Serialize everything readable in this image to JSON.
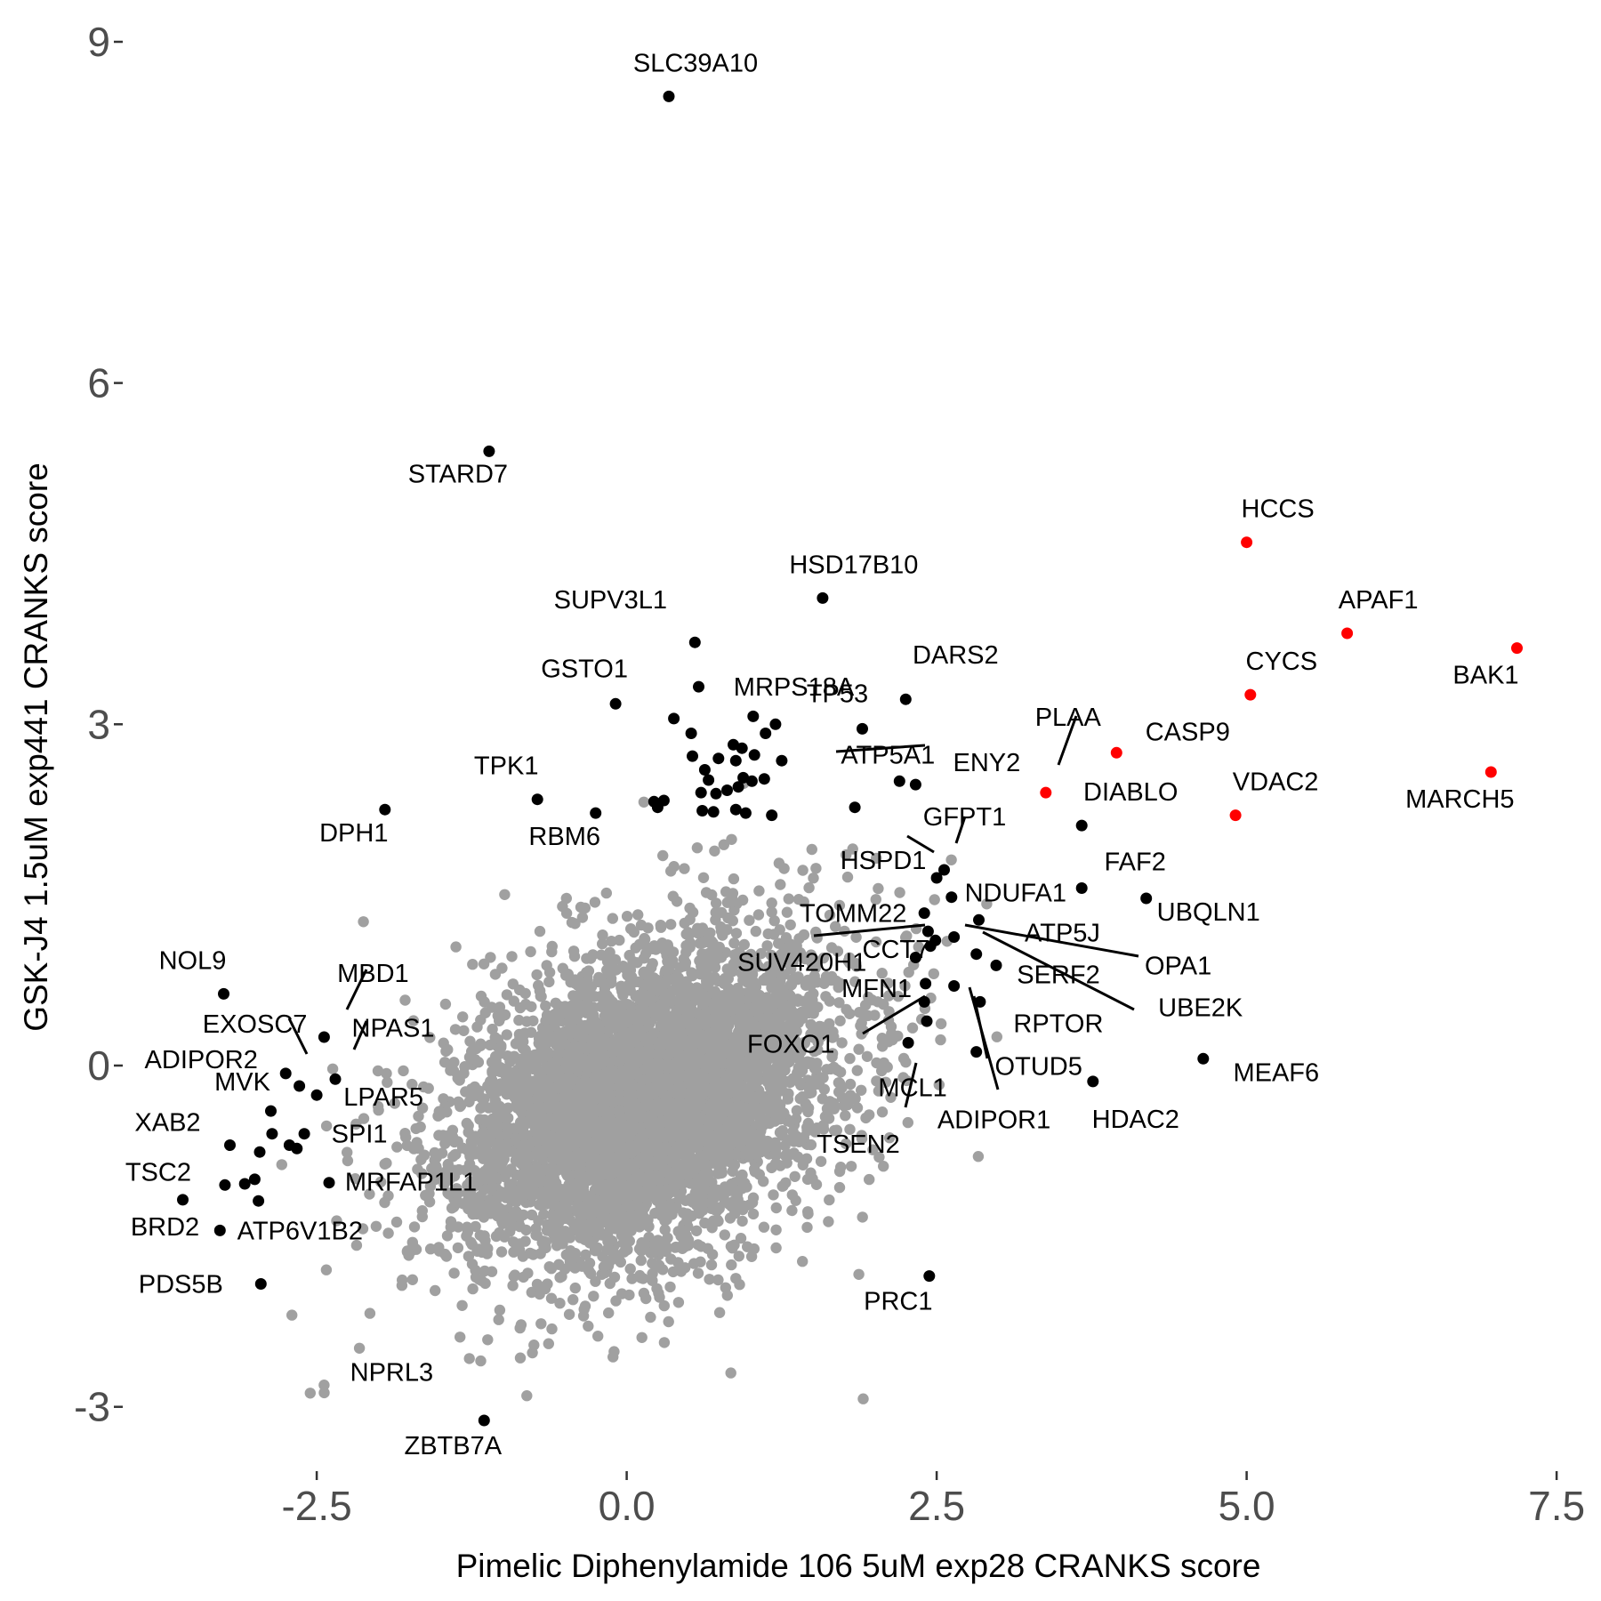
{
  "chart_data": {
    "type": "scatter",
    "xlabel": "Pimelic Diphenylamide 106 5uM exp28 CRANKS score",
    "ylabel": "GSK-J4 1.5uM exp441 CRANKS score",
    "xlim": [
      -4.05,
      7.75
    ],
    "ylim": [
      -3.55,
      9.25
    ],
    "x_ticks": [
      {
        "value": -2.5,
        "label": "-2.5"
      },
      {
        "value": 0.0,
        "label": "0.0"
      },
      {
        "value": 2.5,
        "label": "2.5"
      },
      {
        "value": 5.0,
        "label": "5.0"
      },
      {
        "value": 7.5,
        "label": "7.5"
      }
    ],
    "y_ticks": [
      {
        "value": -3,
        "label": "-3"
      },
      {
        "value": 0,
        "label": "0"
      },
      {
        "value": 3,
        "label": "3"
      },
      {
        "value": 6,
        "label": "6"
      },
      {
        "value": 9,
        "label": "9"
      }
    ],
    "grid": false,
    "colors": {
      "background_points": "#a0a0a0",
      "highlight_points": "#000000",
      "top_hits": "#ff0000",
      "tick_text": "#4d4d4d"
    },
    "series": [
      {
        "color": "#ff0000",
        "points": [
          {
            "x": 5.0,
            "y": 4.6,
            "label": "HCCS"
          },
          {
            "x": 5.81,
            "y": 3.8,
            "label": "APAF1"
          },
          {
            "x": 7.18,
            "y": 3.67,
            "label": "BAK1"
          },
          {
            "x": 5.03,
            "y": 3.26,
            "label": "CYCS"
          },
          {
            "x": 3.95,
            "y": 2.75,
            "label": "CASP9"
          },
          {
            "x": 6.97,
            "y": 2.58,
            "label": "MARCH5"
          },
          {
            "x": 3.38,
            "y": 2.4,
            "label": "PLAA"
          },
          {
            "x": 4.91,
            "y": 2.2,
            "label": "VDAC2"
          }
        ]
      },
      {
        "color": "#000000",
        "points": [
          {
            "x": 0.34,
            "y": 8.52,
            "label": "SLC39A10"
          },
          {
            "x": -1.11,
            "y": 5.4,
            "label": "STARD7"
          },
          {
            "x": 1.58,
            "y": 4.11,
            "label": "HSD17B10"
          },
          {
            "x": 0.55,
            "y": 3.72,
            "label": "SUPV3L1"
          },
          {
            "x": 0.58,
            "y": 3.33,
            "label": "MRPS18A"
          },
          {
            "x": -0.09,
            "y": 3.18,
            "label": "GSTO1"
          },
          {
            "x": 2.25,
            "y": 3.22,
            "label": "DARS2"
          },
          {
            "x": 1.9,
            "y": 2.96,
            "label": "TP53"
          },
          {
            "x": 2.2,
            "y": 2.5,
            "label": "ATP5A1"
          },
          {
            "x": 2.33,
            "y": 2.47,
            "label": "ENY2"
          },
          {
            "x": -0.72,
            "y": 2.34,
            "label": "TPK1"
          },
          {
            "x": -1.95,
            "y": 2.25,
            "label": "DPH1"
          },
          {
            "x": -0.25,
            "y": 2.22,
            "label": "RBM6"
          },
          {
            "x": 3.67,
            "y": 2.11,
            "label": "DIABLO"
          },
          {
            "x": 2.5,
            "y": 1.65,
            "label": "HSPD1"
          },
          {
            "x": 2.56,
            "y": 1.72,
            "label": "GFPT1"
          },
          {
            "x": 2.62,
            "y": 1.48,
            "label": "NDUFA1"
          },
          {
            "x": 3.67,
            "y": 1.56,
            "label": "FAF2"
          },
          {
            "x": 4.19,
            "y": 1.47,
            "label": "UBQLN1"
          },
          {
            "x": 2.4,
            "y": 1.34,
            "label": "TOMM22"
          },
          {
            "x": 2.84,
            "y": 1.28,
            "label": "ATP5J"
          },
          {
            "x": 2.49,
            "y": 1.1,
            "label": "SUV420H1"
          },
          {
            "x": 2.43,
            "y": 1.18,
            "label": "CCT7"
          },
          {
            "x": 2.64,
            "y": 1.13,
            "label": "OPA1"
          },
          {
            "x": 2.98,
            "y": 0.88,
            "label": "SERF2"
          },
          {
            "x": 2.82,
            "y": 0.98,
            "label": "UBE2K"
          },
          {
            "x": 2.41,
            "y": 0.72,
            "label": "MFN1"
          },
          {
            "x": 2.4,
            "y": 0.56,
            "label": "FOXO1"
          },
          {
            "x": 2.85,
            "y": 0.56,
            "label": "RPTOR"
          },
          {
            "x": 4.65,
            "y": 0.06,
            "label": "MEAF6"
          },
          {
            "x": 2.27,
            "y": 0.2,
            "label": "MCL1"
          },
          {
            "x": 2.82,
            "y": 0.12,
            "label": "OTUD5"
          },
          {
            "x": 3.76,
            "y": -0.14,
            "label": "HDAC2"
          },
          {
            "x": 2.42,
            "y": 0.39,
            "label": "TSEN2"
          },
          {
            "x": 2.64,
            "y": 0.7,
            "label": "ADIPOR1"
          },
          {
            "x": 2.44,
            "y": -1.85,
            "label": "PRC1"
          },
          {
            "x": -3.25,
            "y": 0.63,
            "label": "NOL9"
          },
          {
            "x": -2.44,
            "y": 0.25,
            "label": "MBD1"
          },
          {
            "x": -2.64,
            "y": -0.18,
            "label": "EXOSC7"
          },
          {
            "x": -2.35,
            "y": -0.12,
            "label": "NPAS1"
          },
          {
            "x": -2.5,
            "y": -0.26,
            "label": "LPAR5"
          },
          {
            "x": -2.75,
            "y": -0.07,
            "label": "ADIPOR2"
          },
          {
            "x": -2.87,
            "y": -0.4,
            "label": "MVK"
          },
          {
            "x": -3.2,
            "y": -0.7,
            "label": "XAB2"
          },
          {
            "x": -2.6,
            "y": -0.6,
            "label": "SPI1"
          },
          {
            "x": -2.4,
            "y": -1.03,
            "label": "MRFAP1L1"
          },
          {
            "x": -3.24,
            "y": -1.05,
            "label": "TSC2"
          },
          {
            "x": -3.58,
            "y": -1.18,
            "label": "BRD2"
          },
          {
            "x": -3.28,
            "y": -1.45,
            "label": "ATP6V1B2"
          },
          {
            "x": -2.95,
            "y": -1.92,
            "label": "PDS5B"
          },
          {
            "x": -2.72,
            "y": -0.7,
            "label": "NPRL3"
          },
          {
            "x": -1.15,
            "y": -3.12,
            "label": "ZBTB7A"
          }
        ]
      },
      {
        "color": "#000000",
        "points": [
          {
            "x": 0.38,
            "y": 3.05
          },
          {
            "x": 0.52,
            "y": 2.92
          },
          {
            "x": 0.53,
            "y": 2.72
          },
          {
            "x": 0.63,
            "y": 2.6
          },
          {
            "x": 0.86,
            "y": 2.82
          },
          {
            "x": 0.93,
            "y": 2.79
          },
          {
            "x": 1.03,
            "y": 2.73
          },
          {
            "x": 1.12,
            "y": 2.92
          },
          {
            "x": 1.2,
            "y": 3.0
          },
          {
            "x": 1.02,
            "y": 3.07
          },
          {
            "x": 0.88,
            "y": 2.68
          },
          {
            "x": 0.74,
            "y": 2.7
          },
          {
            "x": 0.66,
            "y": 2.51
          },
          {
            "x": 0.81,
            "y": 2.42
          },
          {
            "x": 0.9,
            "y": 2.45
          },
          {
            "x": 1.01,
            "y": 2.5
          },
          {
            "x": 1.11,
            "y": 2.52
          },
          {
            "x": 1.25,
            "y": 2.68
          },
          {
            "x": 0.6,
            "y": 2.4
          },
          {
            "x": 0.72,
            "y": 2.39
          },
          {
            "x": 0.94,
            "y": 2.53
          },
          {
            "x": 0.22,
            "y": 2.32
          },
          {
            "x": 0.3,
            "y": 2.33
          },
          {
            "x": 0.25,
            "y": 2.27
          },
          {
            "x": 0.61,
            "y": 2.24
          },
          {
            "x": 0.7,
            "y": 2.23
          },
          {
            "x": 0.88,
            "y": 2.25
          },
          {
            "x": 0.96,
            "y": 2.22
          },
          {
            "x": 1.17,
            "y": 2.2
          },
          {
            "x": 1.84,
            "y": 2.27
          },
          {
            "x": 2.33,
            "y": 0.95
          },
          {
            "x": 2.45,
            "y": 1.05
          },
          {
            "x": -3.0,
            "y": -1.0
          },
          {
            "x": -2.96,
            "y": -0.76
          },
          {
            "x": -2.86,
            "y": -0.6
          },
          {
            "x": -2.66,
            "y": -0.73
          },
          {
            "x": -3.08,
            "y": -1.04
          },
          {
            "x": -2.97,
            "y": -1.19
          }
        ]
      }
    ],
    "background_cloud": {
      "description": "thousands of grey genes, dense around (0.2, -0.3)",
      "center": [
        0.15,
        -0.3
      ],
      "spread": [
        0.75,
        0.68
      ],
      "count": 5200
    }
  }
}
